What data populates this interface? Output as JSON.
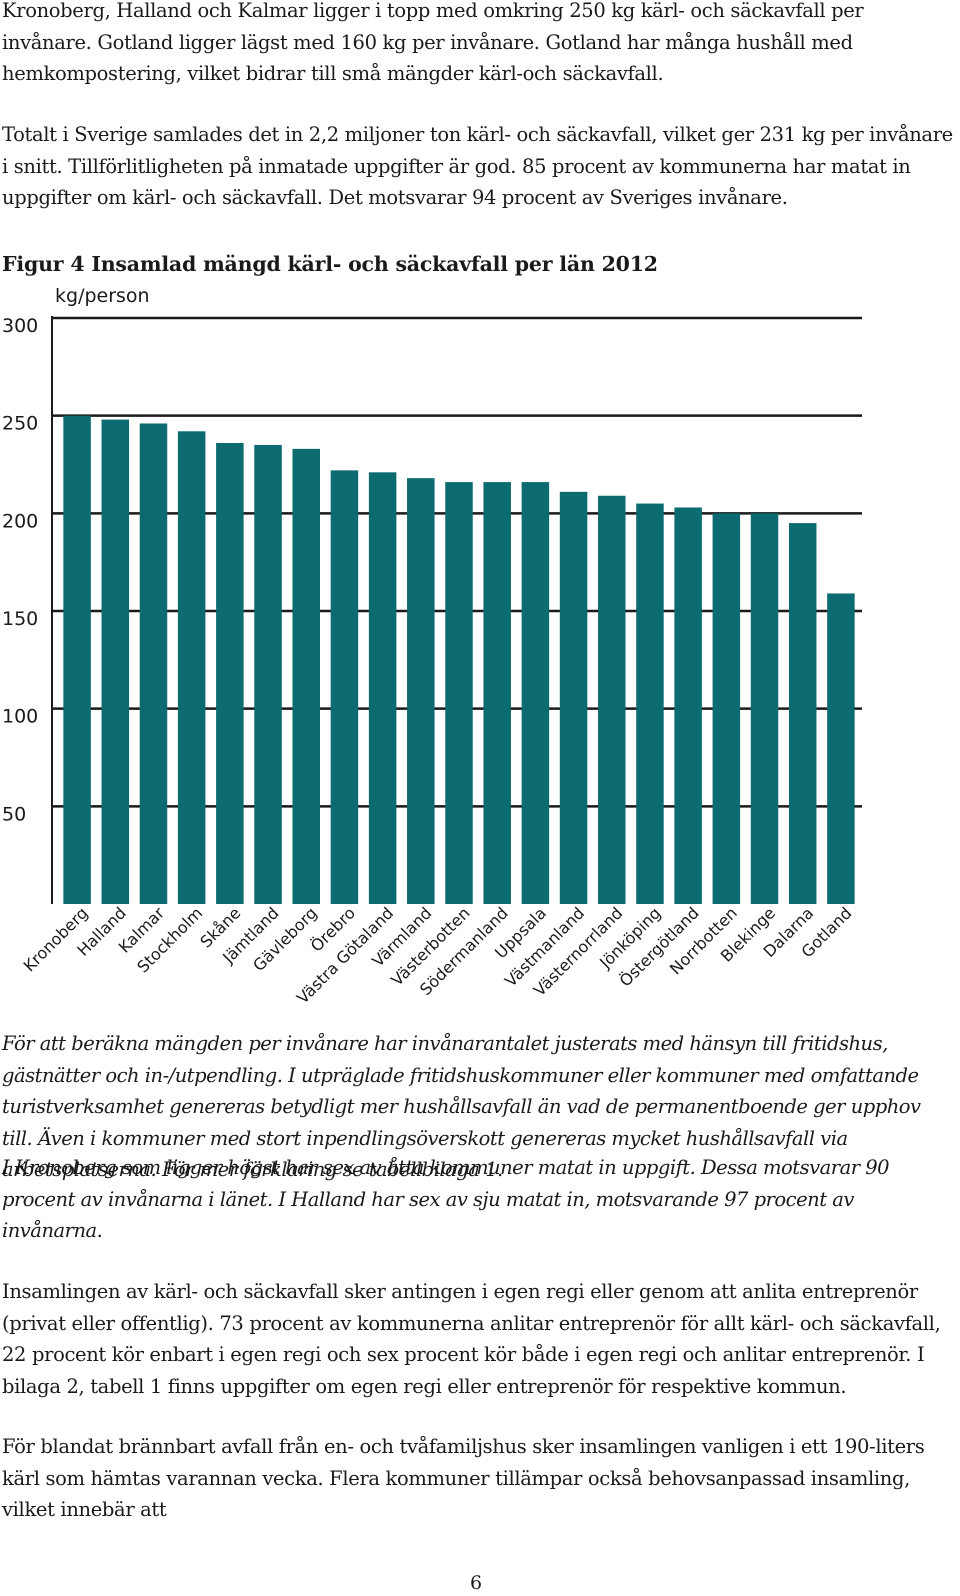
{
  "paragraphs": {
    "p1": "Kronoberg, Halland och Kalmar ligger i topp med omkring 250 kg kärl- och säckavfall per invånare. Gotland ligger lägst med 160 kg per invånare. Gotland har många hushåll med hemkompostering, vilket bidrar till små mängder kärl-och säckavfall.",
    "p2": "Totalt i Sverige samlades det in 2,2 miljoner ton kärl- och säckavfall, vilket ger 231 kg per invånare i snitt. Tillförlitligheten på inmatade uppgifter är god. 85 procent av kommunerna har matat in uppgifter om kärl- och säckavfall. Det motsvarar 94 procent av Sveriges invånare.",
    "p3": "För att beräkna mängden per invånare har invånarantalet justerats med hänsyn till fritidshus, gästnätter och in-/utpendling. I utpräglade fritidshuskommuner eller kommuner med omfattande turistverksamhet genereras betydligt mer hushållsavfall än vad de permanentboende ger upphov till. Även i kommuner med stort inpendlingsöverskott genereras mycket hushållsavfall via arbetsplatserna. För mer förklaring se tabellbilaga 1.",
    "p4": "I Kronoberg som ligger högst har sex av åtta kommuner matat in uppgift. Dessa motsvarar 90 procent av invånarna i länet. I Halland har sex av sju matat in, motsvarande 97 procent av invånarna.",
    "p5": "Insamlingen av kärl- och säckavfall sker antingen i egen regi eller genom att anlita entreprenör (privat eller offentlig). 73 procent av kommunerna anlitar entreprenör för allt kärl- och säckavfall, 22 procent kör enbart i egen regi och sex procent kör både i egen regi och anlitar entreprenör. I bilaga 2, tabell 1 finns uppgifter om egen regi eller entreprenör för respektive kommun.",
    "p6": "För blandat brännbart avfall från en- och tvåfamiljshus sker insamlingen vanligen i ett 190-liters kärl som hämtas varannan vecka. Flera kommuner tillämpar också behovsanpassad insamling, vilket innebär att"
  },
  "figure_title": "Figur 4 Insamlad mängd kärl- och säckavfall per län 2012",
  "page_number": "6",
  "chart_data": {
    "type": "bar",
    "title": "Figur 4 Insamlad mängd kärl- och säckavfall per län 2012",
    "ylabel": "kg/person",
    "xlabel": "",
    "ylim": [
      0,
      300
    ],
    "yticks": [
      50,
      100,
      150,
      200,
      250,
      300
    ],
    "grid": true,
    "legend": "none",
    "bar_color": "#0b6b71",
    "categories": [
      "Kronoberg",
      "Halland",
      "Kalmar",
      "Stockholm",
      "Skåne",
      "Jämtland",
      "Gävleborg",
      "Örebro",
      "Västra Götaland",
      "Värmland",
      "Västerbotten",
      "Södermanland",
      "Uppsala",
      "Västmanland",
      "Västernorrland",
      "Jönköping",
      "Östergötland",
      "Norrbotten",
      "Blekinge",
      "Dalarna",
      "Gotland"
    ],
    "values": [
      250,
      248,
      246,
      242,
      236,
      235,
      233,
      222,
      221,
      218,
      216,
      216,
      216,
      211,
      209,
      205,
      203,
      200,
      200,
      195,
      159
    ]
  }
}
